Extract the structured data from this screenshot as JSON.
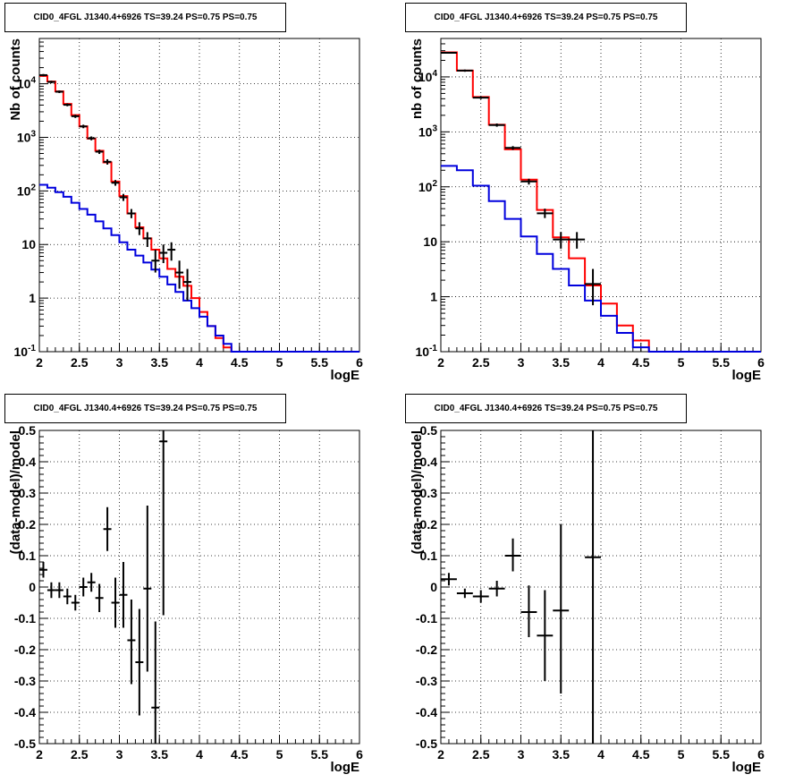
{
  "chart_data": [
    {
      "type": "step_histogram_with_points",
      "title": "CID0_4FGL J1340.4+6926 TS=39.24 PS=0.75 PS=0.75",
      "xlabel": "logE",
      "ylabel": "Nb of counts",
      "xlim": [
        2,
        6
      ],
      "ylim": [
        0.1,
        70000
      ],
      "yscale": "log",
      "grid": true,
      "xticks": [
        2,
        2.5,
        3,
        3.5,
        4,
        4.5,
        5,
        5.5,
        6
      ],
      "xtick_labels": [
        "2",
        "2.5",
        "3",
        "3.5",
        "4",
        "4.5",
        "5",
        "5.5",
        "6"
      ],
      "ytick_labels": [
        "10^-1",
        "1",
        "10",
        "10^2",
        "10^3",
        "10^4"
      ],
      "bin_edges": [
        2.0,
        2.1,
        2.2,
        2.3,
        2.4,
        2.5,
        2.6,
        2.7,
        2.8,
        2.9,
        3.0,
        3.1,
        3.2,
        3.3,
        3.4,
        3.5,
        3.6,
        3.7,
        3.8,
        3.9,
        4.0,
        4.1,
        4.2,
        4.3,
        4.4,
        4.5,
        4.6,
        4.7,
        4.8,
        4.9,
        5.0,
        5.1,
        5.2,
        5.3,
        5.4,
        5.5,
        5.6,
        5.7,
        5.8,
        5.9,
        6.0
      ],
      "series": [
        {
          "color": "#ff0000",
          "values": [
            14000,
            11000,
            7200,
            4200,
            2600,
            1600,
            950,
            560,
            340,
            150,
            80,
            38,
            21,
            13,
            8,
            5.5,
            3.5,
            2.5,
            1.7,
            1.0,
            0.55,
            0.3,
            0.18,
            0.12,
            0.1,
            0.1,
            0.1,
            0.1,
            0.1,
            0.1,
            0.1,
            0.1,
            0.1,
            0.1,
            0.1,
            0.1,
            0.1,
            0.1,
            0.1,
            0.1
          ]
        },
        {
          "color": "#0000dd",
          "values": [
            130,
            115,
            95,
            78,
            60,
            46,
            36,
            27,
            20,
            15,
            11,
            8,
            6.2,
            4.6,
            3.4,
            2.5,
            1.8,
            1.3,
            0.9,
            0.65,
            0.45,
            0.3,
            0.2,
            0.14,
            0.1,
            0.1,
            0.1,
            0.1,
            0.1,
            0.1,
            0.1,
            0.1,
            0.1,
            0.1,
            0.1,
            0.1,
            0.1,
            0.1,
            0.1,
            0.1
          ]
        }
      ],
      "points": [
        {
          "x": 2.05,
          "y": 14500,
          "ylo": 13800,
          "yhi": 15200
        },
        {
          "x": 2.15,
          "y": 10800,
          "ylo": 10200,
          "yhi": 11400
        },
        {
          "x": 2.25,
          "y": 7100,
          "ylo": 6700,
          "yhi": 7500
        },
        {
          "x": 2.35,
          "y": 4050,
          "ylo": 3800,
          "yhi": 4300
        },
        {
          "x": 2.45,
          "y": 2480,
          "ylo": 2300,
          "yhi": 2650
        },
        {
          "x": 2.55,
          "y": 1600,
          "ylo": 1480,
          "yhi": 1720
        },
        {
          "x": 2.65,
          "y": 960,
          "ylo": 880,
          "yhi": 1040
        },
        {
          "x": 2.75,
          "y": 540,
          "ylo": 490,
          "yhi": 590
        },
        {
          "x": 2.85,
          "y": 350,
          "ylo": 310,
          "yhi": 390
        },
        {
          "x": 2.95,
          "y": 142,
          "ylo": 125,
          "yhi": 160
        },
        {
          "x": 3.05,
          "y": 76,
          "ylo": 65,
          "yhi": 88
        },
        {
          "x": 3.15,
          "y": 38,
          "ylo": 31,
          "yhi": 46
        },
        {
          "x": 3.25,
          "y": 20,
          "ylo": 15,
          "yhi": 26
        },
        {
          "x": 3.35,
          "y": 13,
          "ylo": 9,
          "yhi": 17
        },
        {
          "x": 3.45,
          "y": 5,
          "ylo": 3,
          "yhi": 8
        },
        {
          "x": 3.55,
          "y": 7,
          "ylo": 4.5,
          "yhi": 10
        },
        {
          "x": 3.65,
          "y": 8,
          "ylo": 5,
          "yhi": 11
        },
        {
          "x": 3.75,
          "y": 3,
          "ylo": 1.5,
          "yhi": 5
        },
        {
          "x": 3.85,
          "y": 2,
          "ylo": 0.9,
          "yhi": 3.5
        }
      ]
    },
    {
      "type": "step_histogram_with_points",
      "title": "CID0_4FGL J1340.4+6926 TS=39.24 PS=0.75 PS=0.75",
      "xlabel": "logE",
      "ylabel": "nb of counts",
      "xlim": [
        2,
        6
      ],
      "ylim": [
        0.1,
        50000
      ],
      "yscale": "log",
      "grid": true,
      "xticks": [
        2,
        2.5,
        3,
        3.5,
        4,
        4.5,
        5,
        5.5,
        6
      ],
      "xtick_labels": [
        "2",
        "2.5",
        "3",
        "3.5",
        "4",
        "4.5",
        "5",
        "5.5",
        "6"
      ],
      "ytick_labels": [
        "10^-1",
        "1",
        "10",
        "10^2",
        "10^3",
        "10^4"
      ],
      "bin_edges": [
        2.0,
        2.2,
        2.4,
        2.6,
        2.8,
        3.0,
        3.2,
        3.4,
        3.6,
        3.8,
        4.0,
        4.2,
        4.4,
        4.6,
        4.8,
        5.0,
        5.2,
        5.4,
        5.6,
        5.8,
        6.0
      ],
      "series": [
        {
          "color": "#ff0000",
          "values": [
            28000,
            13000,
            4300,
            1350,
            480,
            135,
            38,
            12,
            5,
            1.6,
            0.75,
            0.3,
            0.16,
            0.1,
            0.1,
            0.1,
            0.1,
            0.1,
            0.1,
            0.1
          ]
        },
        {
          "color": "#0000dd",
          "values": [
            240,
            200,
            105,
            55,
            26,
            12.5,
            6,
            3.2,
            1.6,
            0.85,
            0.45,
            0.22,
            0.12,
            0.1,
            0.1,
            0.1,
            0.1,
            0.1,
            0.1,
            0.1
          ]
        }
      ],
      "points": [
        {
          "x": 2.1,
          "y": 27500,
          "ylo": 26500,
          "yhi": 28500
        },
        {
          "x": 2.3,
          "y": 13000,
          "ylo": 12400,
          "yhi": 13600
        },
        {
          "x": 2.5,
          "y": 4200,
          "ylo": 3950,
          "yhi": 4450
        },
        {
          "x": 2.7,
          "y": 1330,
          "ylo": 1240,
          "yhi": 1420
        },
        {
          "x": 2.9,
          "y": 510,
          "ylo": 470,
          "yhi": 550
        },
        {
          "x": 3.1,
          "y": 125,
          "ylo": 110,
          "yhi": 140
        },
        {
          "x": 3.3,
          "y": 33,
          "ylo": 27,
          "yhi": 40
        },
        {
          "x": 3.5,
          "y": 11,
          "ylo": 7.5,
          "yhi": 15
        },
        {
          "x": 3.7,
          "y": 11,
          "ylo": 7.5,
          "yhi": 15
        },
        {
          "x": 3.9,
          "y": 1.7,
          "ylo": 0.7,
          "yhi": 3.2
        }
      ]
    },
    {
      "type": "scatter_with_errors",
      "title": "CID0_4FGL J1340.4+6926 TS=39.24 PS=0.75 PS=0.75",
      "xlabel": "logE",
      "ylabel": "(data-model)/model",
      "xlim": [
        2,
        6
      ],
      "ylim": [
        -0.5,
        0.5
      ],
      "grid": true,
      "xticks": [
        2,
        2.5,
        3,
        3.5,
        4,
        4.5,
        5,
        5.5,
        6
      ],
      "xtick_labels": [
        "2",
        "2.5",
        "3",
        "3.5",
        "4",
        "4.5",
        "5",
        "5.5",
        "6"
      ],
      "yticks": [
        -0.5,
        -0.4,
        -0.3,
        -0.2,
        -0.1,
        0,
        0.1,
        0.2,
        0.3,
        0.4,
        0.5
      ],
      "ytick_labels": [
        "-0.5",
        "-0.4",
        "-0.3",
        "-0.2",
        "-0.1",
        "0",
        "0.1",
        "0.2",
        "0.3",
        "0.4",
        "0.5"
      ],
      "points": [
        {
          "x": 2.05,
          "y": 0.055,
          "ylo": 0.03,
          "yhi": 0.08
        },
        {
          "x": 2.15,
          "y": -0.01,
          "ylo": -0.035,
          "yhi": 0.015
        },
        {
          "x": 2.25,
          "y": -0.01,
          "ylo": -0.035,
          "yhi": 0.015
        },
        {
          "x": 2.35,
          "y": -0.03,
          "ylo": -0.055,
          "yhi": -0.005
        },
        {
          "x": 2.45,
          "y": -0.05,
          "ylo": -0.075,
          "yhi": -0.025
        },
        {
          "x": 2.55,
          "y": 0.0,
          "ylo": -0.03,
          "yhi": 0.03
        },
        {
          "x": 2.65,
          "y": 0.015,
          "ylo": -0.015,
          "yhi": 0.045
        },
        {
          "x": 2.75,
          "y": -0.035,
          "ylo": -0.08,
          "yhi": 0.01
        },
        {
          "x": 2.85,
          "y": 0.185,
          "ylo": 0.115,
          "yhi": 0.255
        },
        {
          "x": 2.95,
          "y": -0.05,
          "ylo": -0.13,
          "yhi": 0.03
        },
        {
          "x": 3.05,
          "y": -0.025,
          "ylo": -0.13,
          "yhi": 0.08
        },
        {
          "x": 3.15,
          "y": -0.17,
          "ylo": -0.31,
          "yhi": -0.04
        },
        {
          "x": 3.25,
          "y": -0.24,
          "ylo": -0.41,
          "yhi": -0.07
        },
        {
          "x": 3.35,
          "y": -0.005,
          "ylo": -0.27,
          "yhi": 0.26
        },
        {
          "x": 3.45,
          "y": -0.385,
          "ylo": -0.55,
          "yhi": -0.11
        },
        {
          "x": 3.55,
          "y": 0.465,
          "ylo": -0.09,
          "yhi": 0.6
        }
      ]
    },
    {
      "type": "scatter_with_errors",
      "title": "CID0_4FGL J1340.4+6926 TS=39.24 PS=0.75 PS=0.75",
      "xlabel": "logE",
      "ylabel": "(data-model)/model",
      "xlim": [
        2,
        6
      ],
      "ylim": [
        -0.5,
        0.5
      ],
      "grid": true,
      "xticks": [
        2,
        2.5,
        3,
        3.5,
        4,
        4.5,
        5,
        5.5,
        6
      ],
      "xtick_labels": [
        "2",
        "2.5",
        "3",
        "3.5",
        "4",
        "4.5",
        "5",
        "5.5",
        "6"
      ],
      "yticks": [
        -0.5,
        -0.4,
        -0.3,
        -0.2,
        -0.1,
        0,
        0.1,
        0.2,
        0.3,
        0.4,
        0.5
      ],
      "ytick_labels": [
        "-0.5",
        "-0.4",
        "-0.3",
        "-0.2",
        "-0.1",
        "0",
        "0.1",
        "0.2",
        "0.3",
        "0.4",
        "0.5"
      ],
      "points": [
        {
          "x": 2.1,
          "y": 0.025,
          "ylo": 0.005,
          "yhi": 0.045
        },
        {
          "x": 2.3,
          "y": -0.02,
          "ylo": -0.035,
          "yhi": -0.005
        },
        {
          "x": 2.5,
          "y": -0.03,
          "ylo": -0.05,
          "yhi": -0.01
        },
        {
          "x": 2.7,
          "y": -0.005,
          "ylo": -0.03,
          "yhi": 0.02
        },
        {
          "x": 2.9,
          "y": 0.1,
          "ylo": 0.05,
          "yhi": 0.155
        },
        {
          "x": 3.1,
          "y": -0.08,
          "ylo": -0.16,
          "yhi": 0.005
        },
        {
          "x": 3.3,
          "y": -0.155,
          "ylo": -0.3,
          "yhi": -0.01
        },
        {
          "x": 3.5,
          "y": -0.075,
          "ylo": -0.34,
          "yhi": 0.2
        },
        {
          "x": 3.9,
          "y": 0.095,
          "ylo": -0.55,
          "yhi": 0.55
        }
      ]
    }
  ]
}
